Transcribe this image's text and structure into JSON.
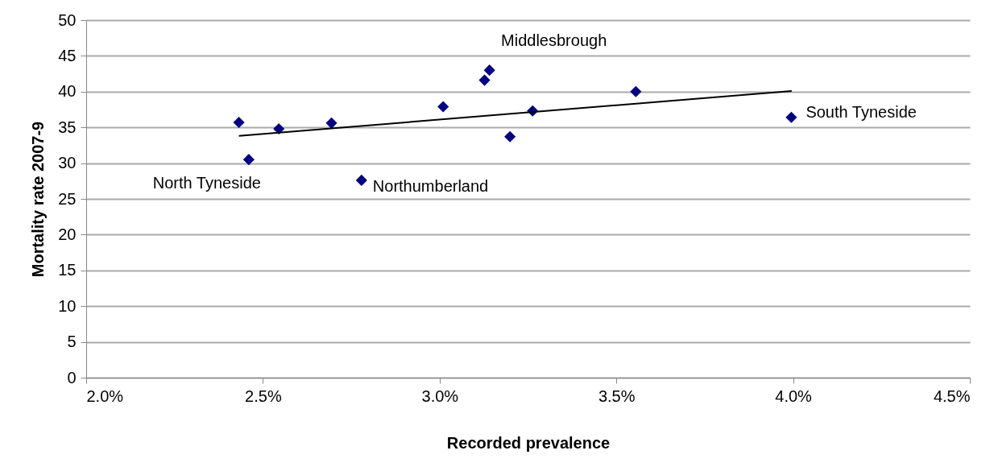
{
  "chart_data": {
    "type": "scatter",
    "xlabel": "Recorded prevalence",
    "ylabel": "Mortality rate 2007-9",
    "xlim": [
      2.0,
      4.5
    ],
    "ylim": [
      0,
      50
    ],
    "xticks": [
      {
        "value": 2.0,
        "label": "2.0%"
      },
      {
        "value": 2.5,
        "label": "2.5%"
      },
      {
        "value": 3.0,
        "label": "3.0%"
      },
      {
        "value": 3.5,
        "label": "3.5%"
      },
      {
        "value": 4.0,
        "label": "4.0%"
      },
      {
        "value": 4.5,
        "label": "4.5%"
      }
    ],
    "yticks": [
      0,
      5,
      10,
      15,
      20,
      25,
      30,
      35,
      40,
      45,
      50
    ],
    "grid": "y",
    "marker": "diamond",
    "series": [
      {
        "color": "#000080",
        "x": [
          2.432,
          2.46,
          2.545,
          2.694,
          2.779,
          3.01,
          3.127,
          3.141,
          3.199,
          3.263,
          3.555,
          3.995
        ],
        "values": [
          35.7,
          30.5,
          34.8,
          35.6,
          27.6,
          37.9,
          41.6,
          43.0,
          33.7,
          37.3,
          40.0,
          36.4
        ]
      },
      {
        "type": "line",
        "marker": "none",
        "line_style": "solid",
        "color": "#000000",
        "x": [
          2.432,
          3.996
        ],
        "values": [
          33.8,
          40.1
        ]
      }
    ],
    "annotations": [
      {
        "text": "North Tyneside",
        "x": 2.46,
        "y": 30.5
      },
      {
        "text": "Northumberland",
        "x": 2.779,
        "y": 27.6
      },
      {
        "text": "Middlesbrough",
        "x": 3.141,
        "y": 43.0
      },
      {
        "text": "South Tyneside",
        "x": 3.995,
        "y": 36.4
      }
    ]
  }
}
